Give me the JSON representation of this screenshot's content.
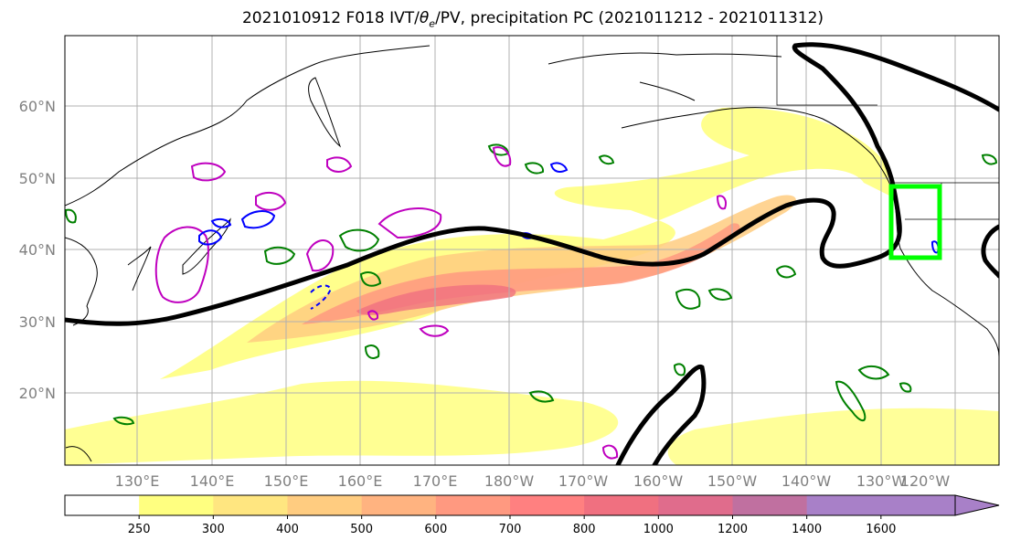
{
  "title": {
    "prefix": "2021010912 F018 IVT/",
    "theta_symbol": "θ",
    "theta_sub": "e",
    "suffix": "/PV, precipitation PC (2021011212 - 2021011312)"
  },
  "map": {
    "lat_labels": [
      "60°N",
      "50°N",
      "40°N",
      "30°N",
      "20°N"
    ],
    "lon_labels": [
      "130°E",
      "140°E",
      "150°E",
      "160°E",
      "170°E",
      "180°W",
      "170°W",
      "160°W",
      "150°W",
      "140°W",
      "130°W",
      "120°W"
    ],
    "colors": {
      "jet_contour": "#000000",
      "highlight_box": "#00ff00",
      "precip_contour": "#008000",
      "pv_contour": "#0000ff",
      "theta_contour": "#bf00bf",
      "coastline": "#000000",
      "grid": "#b0b0b0"
    }
  },
  "colorbar": {
    "ticks": [
      "250",
      "300",
      "400",
      "500",
      "600",
      "700",
      "800",
      "1000",
      "1200",
      "1400",
      "1600"
    ],
    "colors": [
      "#ffffff",
      "#ffff80",
      "#ffe680",
      "#ffcc80",
      "#ffb380",
      "#ff9980",
      "#ff8080",
      "#f07080",
      "#e06c8c",
      "#c070a0",
      "#a880c8"
    ]
  }
}
